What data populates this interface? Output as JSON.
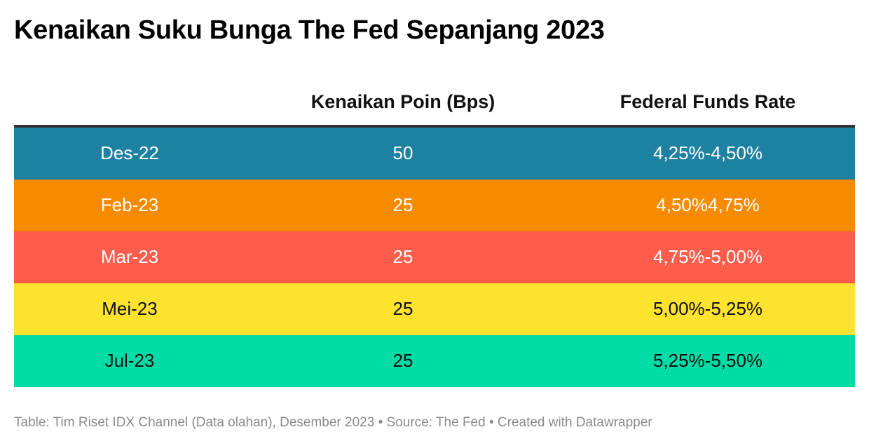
{
  "title": "Kenaikan Suku Bunga The Fed Sepanjang 2023",
  "colors": {
    "header_rule": "#333333",
    "footer_text": "#8a8a8a"
  },
  "chart_data": {
    "type": "table",
    "title": "Kenaikan Suku Bunga The Fed Sepanjang 2023",
    "columns": [
      "",
      "Kenaikan Poin (Bps)",
      "Federal Funds Rate"
    ],
    "rows": [
      {
        "period": "Des-22",
        "bps": "50",
        "rate": "4,25%-4,50%",
        "bg": "#1d81a2",
        "fg": "#ffffff"
      },
      {
        "period": "Feb-23",
        "bps": "25",
        "rate": "4,50%4,75%",
        "bg": "#f78b00",
        "fg": "#ffffff"
      },
      {
        "period": "Mar-23",
        "bps": "25",
        "rate": "4,75%-5,00%",
        "bg": "#fe5d4c",
        "fg": "#ffffff"
      },
      {
        "period": "Mei-23",
        "bps": "25",
        "rate": "5,00%-5,25%",
        "bg": "#fee32e",
        "fg": "#111111"
      },
      {
        "period": "Jul-23",
        "bps": "25",
        "rate": "5,25%-5,50%",
        "bg": "#00dca5",
        "fg": "#111111"
      }
    ]
  },
  "footer": "Table: Tim Riset IDX Channel (Data olahan), Desember 2023 • Source: The Fed • Created with Datawrapper"
}
